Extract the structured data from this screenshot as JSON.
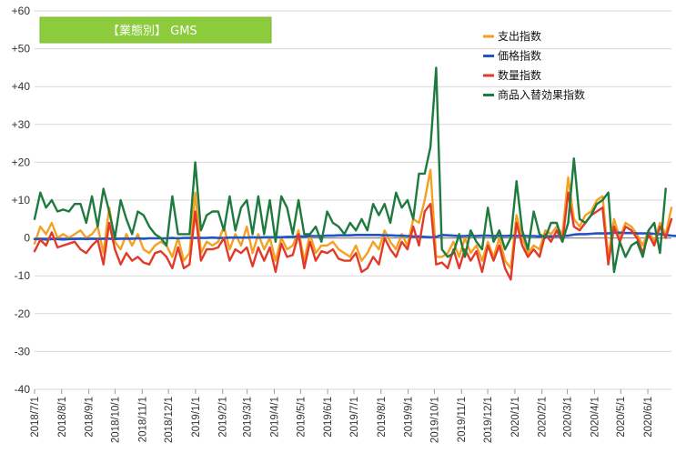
{
  "chart_data": {
    "type": "line",
    "title": "【業態別】 GMS",
    "ylim": [
      -40,
      60
    ],
    "y_ticks": [
      "+60",
      "+50",
      "+40",
      "+30",
      "+20",
      "+10",
      "0",
      "-10",
      "-20",
      "-30",
      "-40"
    ],
    "x_tick_labels": [
      "2018/7/1",
      "2018/8/1",
      "2018/9/1",
      "2018/10/1",
      "2018/11/1",
      "2018/12/1",
      "2019/1/1",
      "2019/2/1",
      "2019/3/1",
      "2019/4/1",
      "2019/5/1",
      "2019/6/1",
      "2019/7/1",
      "2019/8/1",
      "2019/9/1",
      "2019/10/1",
      "2019/11/1",
      "2019/12/1",
      "2020/1/1",
      "2020/2/1",
      "2020/3/1",
      "2020/4/1",
      "2020/5/1",
      "2020/6/1"
    ],
    "x_start": "2018-07-01",
    "x_end": "2020-06-28",
    "x_step_days": 7,
    "legend_position": "top-right",
    "grid": "horizontal",
    "colors": {
      "title_fill": "#8CCB3C",
      "title_border": "#7CB82F",
      "zero_line": "#888888",
      "grid": "#D9D9D9"
    },
    "series": [
      {
        "name": "支出指数",
        "color": "#F5A020",
        "values": [
          -1.5,
          3,
          1,
          4,
          0,
          1,
          0,
          1,
          2,
          0,
          1,
          3,
          -4,
          8,
          -1,
          -3,
          1,
          -2,
          1,
          -3,
          -4,
          -2,
          -1,
          -2,
          -5,
          0,
          -6,
          -4,
          12,
          -4,
          -1,
          -2,
          -1,
          3,
          -3,
          1,
          -2,
          3,
          -4,
          1,
          -3,
          0,
          -6,
          0,
          -3,
          -2,
          2,
          -6,
          1,
          -4,
          -2,
          -2,
          -1,
          -3,
          -4,
          -5,
          -2,
          -6,
          -4,
          -1,
          -3,
          2,
          -1,
          -3,
          1,
          -2,
          5,
          4,
          10,
          18,
          -5,
          -5,
          -4,
          -1,
          -5,
          0,
          -4,
          -2,
          -6,
          -1,
          -5,
          0,
          -6,
          -8,
          6,
          0,
          -4,
          -2,
          -3,
          2,
          1,
          3,
          1,
          16,
          5,
          3,
          6,
          7,
          10,
          11,
          -5,
          5,
          0,
          4,
          3,
          1,
          -2,
          2,
          -1,
          4,
          1,
          8
        ]
      },
      {
        "name": "価格指数",
        "color": "#2255C4",
        "values": [
          -0.3,
          -0.3,
          -0.4,
          -0.3,
          -0.3,
          -0.4,
          -0.3,
          -0.3,
          -0.2,
          -0.3,
          -0.2,
          -0.3,
          -0.2,
          -0.2,
          -0.3,
          -0.2,
          -0.2,
          -0.2,
          -0.1,
          -0.2,
          -0.1,
          -0.1,
          -0.1,
          -0.1,
          0,
          -0.1,
          0,
          0,
          0,
          0,
          0,
          0.1,
          0,
          0,
          0.1,
          0.1,
          0.1,
          0.1,
          0.2,
          0.1,
          0.2,
          0.2,
          0.2,
          0.2,
          0.3,
          0.3,
          0.4,
          0.4,
          0.5,
          0.5,
          0.5,
          0.6,
          0.6,
          0.7,
          0.7,
          0.7,
          0.8,
          0.8,
          0.8,
          0.8,
          0.8,
          0.7,
          0.7,
          0.6,
          0.6,
          0.5,
          0.4,
          0.4,
          0.3,
          0.2,
          0.3,
          0.8,
          0.7,
          0.6,
          0.5,
          0.5,
          0.6,
          0.5,
          0.6,
          0.6,
          0.5,
          0.6,
          0.5,
          0.6,
          0.5,
          0.6,
          0.5,
          0.5,
          0.4,
          0.5,
          0.4,
          0.5,
          0.5,
          0.6,
          0.9,
          1.0,
          1.0,
          1.1,
          1.2,
          1.2,
          1.2,
          1.4,
          1.4,
          1.3,
          1.3,
          1.2,
          1.2,
          1.2,
          1.1,
          1.0,
          0.8,
          0.6,
          0.5
        ]
      },
      {
        "name": "数量指数",
        "color": "#E23A2A",
        "values": [
          -3.5,
          -0.5,
          -2,
          1.5,
          -2.5,
          -2,
          -1.5,
          -1,
          -3,
          -4,
          -2,
          -0.5,
          -7,
          4,
          -3,
          -7,
          -4,
          -6,
          -5,
          -6.5,
          -7,
          -4,
          -3.5,
          -5,
          -8,
          -2.5,
          -8,
          -7,
          7,
          -6,
          -3,
          -3,
          -2.5,
          0,
          -6,
          -3,
          -4,
          -2.5,
          -7.5,
          -2.5,
          -6,
          -2.5,
          -9,
          -1.5,
          -5,
          -4.5,
          1,
          -8,
          -1,
          -6,
          -3.5,
          -4,
          -3,
          -5.5,
          -6,
          -6,
          -4,
          -9,
          -8,
          -5,
          -7,
          0,
          -3,
          -5,
          -1,
          -3,
          3,
          -2,
          7,
          9,
          -7,
          -6.5,
          -8,
          -3,
          -8,
          -3,
          -6,
          -3.5,
          -9,
          -2,
          -6,
          -2,
          -8,
          -11,
          4,
          -2,
          -5,
          -3,
          -5,
          1,
          -1,
          2,
          -1,
          12,
          3,
          2,
          4,
          6,
          7,
          8,
          -7,
          3,
          -1,
          3,
          2,
          0,
          -4,
          1,
          -2,
          3,
          0,
          5
        ]
      },
      {
        "name": "商品入替効果指数",
        "color": "#1E7A3E",
        "values": [
          5,
          12,
          8,
          10,
          7,
          7.5,
          7,
          9,
          9,
          4,
          11,
          3,
          13,
          7,
          0,
          10,
          5,
          1,
          7,
          6,
          3,
          1,
          0,
          -2,
          11,
          1,
          1,
          1,
          20,
          2,
          6,
          7,
          7,
          2,
          11,
          2,
          8,
          10,
          1,
          11,
          1,
          10,
          -1,
          11,
          8,
          1,
          10,
          1,
          1,
          3,
          -1,
          7,
          4,
          3,
          1,
          4,
          2,
          5,
          2,
          9,
          6,
          9,
          4,
          12,
          8,
          10,
          5,
          17,
          17,
          24,
          45,
          -3,
          -5,
          -4,
          1,
          -5,
          2,
          -1,
          -3,
          8,
          -1,
          2,
          -3,
          0,
          15,
          2,
          -3,
          7,
          1,
          0,
          4,
          4,
          -1,
          4,
          21,
          5,
          4,
          6,
          9,
          10,
          12,
          -9,
          -1,
          -5,
          -2,
          -1,
          -5,
          2,
          4,
          -4,
          13
        ]
      }
    ]
  }
}
